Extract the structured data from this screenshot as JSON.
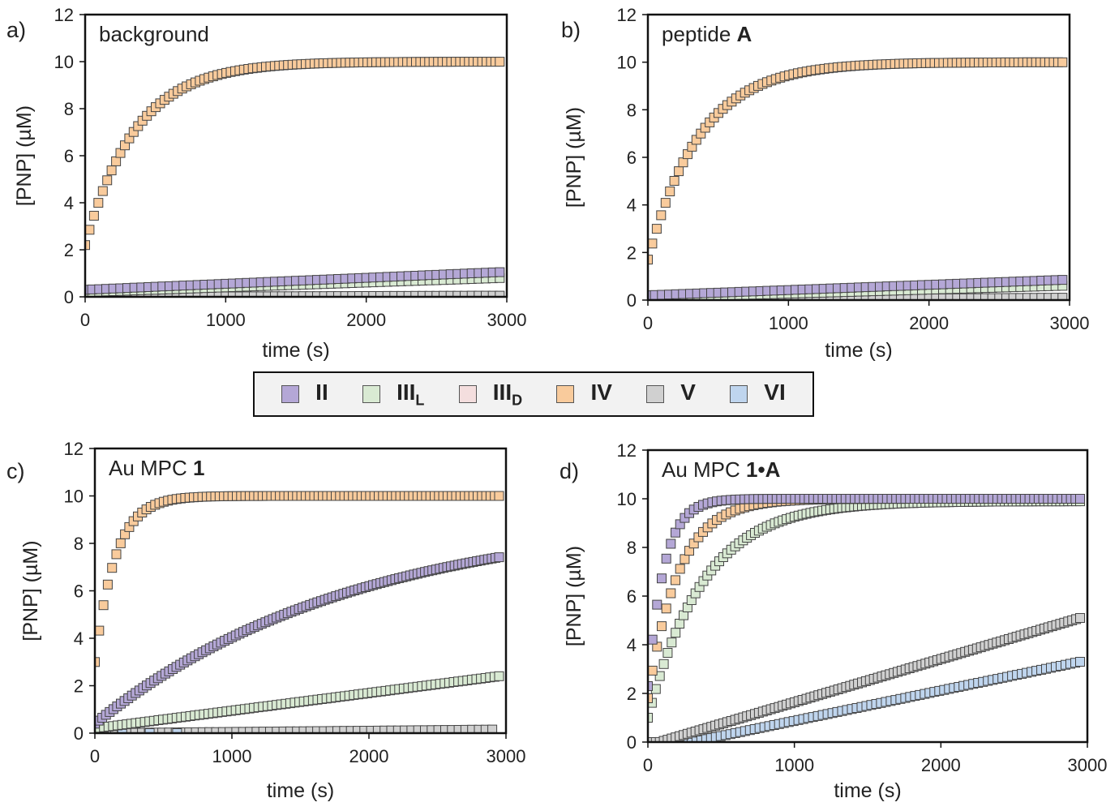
{
  "chart_data": [
    {
      "type": "scatter",
      "panel_label": "a)",
      "title": "background",
      "title_bold": "",
      "xlabel": "time (s)",
      "ylabel": "[PNP] (µM)",
      "xlim": [
        0,
        3000
      ],
      "ylim": [
        0,
        12
      ],
      "xticks": [
        "0",
        "1000",
        "2000",
        "3000"
      ],
      "yticks": [
        "0",
        "2",
        "4",
        "6",
        "8",
        "10",
        "12"
      ],
      "series": [
        {
          "name": "V",
          "model": "linear",
          "start": 0.0,
          "end": 0.05,
          "t_start": 0,
          "t_end": 2950,
          "n": 60
        },
        {
          "name": "III_L",
          "model": "linear",
          "start": 0.2,
          "end": 0.8,
          "t_start": 0,
          "t_end": 2950,
          "n": 60
        },
        {
          "name": "II",
          "model": "linear",
          "start": 0.3,
          "end": 1.05,
          "t_start": 0,
          "t_end": 2950,
          "n": 60
        },
        {
          "name": "IV",
          "model": "exp",
          "y0": 2.2,
          "plateau": 10.0,
          "tau": 360,
          "t_start": 0,
          "t_end": 2950,
          "n": 95
        }
      ]
    },
    {
      "type": "scatter",
      "panel_label": "b)",
      "title": "peptide ",
      "title_bold": "A",
      "xlabel": "time (s)",
      "ylabel": "[PNP] (µM)",
      "xlim": [
        0,
        3000
      ],
      "ylim": [
        0,
        12
      ],
      "xticks": [
        "0",
        "1000",
        "2000",
        "3000"
      ],
      "yticks": [
        "0",
        "2",
        "4",
        "6",
        "8",
        "10",
        "12"
      ],
      "series": [
        {
          "name": "V",
          "model": "linear",
          "start": 0.0,
          "end": 0.1,
          "t_start": 0,
          "t_end": 2950,
          "n": 60
        },
        {
          "name": "III_L",
          "model": "linear",
          "start": 0.1,
          "end": 0.6,
          "t_start": 0,
          "t_end": 2950,
          "n": 60
        },
        {
          "name": "II",
          "model": "linear",
          "start": 0.2,
          "end": 0.85,
          "t_start": 0,
          "t_end": 2950,
          "n": 60
        },
        {
          "name": "IV",
          "model": "exp",
          "y0": 1.7,
          "plateau": 10.0,
          "tau": 370,
          "t_start": 0,
          "t_end": 2950,
          "n": 95
        }
      ]
    },
    {
      "type": "scatter",
      "panel_label": "c)",
      "title": "Au MPC ",
      "title_bold": "1",
      "xlabel": "time (s)",
      "ylabel": "[PNP] (µM)",
      "xlim": [
        0,
        3000
      ],
      "ylim": [
        0,
        12
      ],
      "xticks": [
        "0",
        "1000",
        "2000",
        "3000"
      ],
      "yticks": [
        "0",
        "2",
        "4",
        "6",
        "8",
        "10",
        "12"
      ],
      "series": [
        {
          "name": "V",
          "model": "linear",
          "start": 0.0,
          "end": 0.15,
          "t_start": 0,
          "t_end": 2900,
          "n": 60
        },
        {
          "name": "VI",
          "model": "linear",
          "start": 0.0,
          "end": 0.0,
          "t_start": 0,
          "t_end": 600,
          "n": 4
        },
        {
          "name": "III_L",
          "model": "linear",
          "start": 0.2,
          "end": 2.4,
          "t_start": 0,
          "t_end": 2950,
          "n": 90
        },
        {
          "name": "II",
          "model": "exp",
          "y0": 0.4,
          "plateau": 9.3,
          "tau": 1900,
          "t_start": 0,
          "t_end": 2950,
          "n": 110
        },
        {
          "name": "IV",
          "model": "exp",
          "y0": 3.0,
          "plateau": 10.0,
          "tau": 150,
          "t_start": 0,
          "t_end": 2950,
          "n": 95
        }
      ]
    },
    {
      "type": "scatter",
      "panel_label": "d)",
      "title": "Au MPC ",
      "title_bold": "1•A",
      "xlabel": "time (s)",
      "ylabel": "[PNP] (µM)",
      "xlim": [
        0,
        3000
      ],
      "ylim": [
        0,
        12
      ],
      "xticks": [
        "0",
        "1000",
        "2000",
        "3000"
      ],
      "yticks": [
        "0",
        "2",
        "4",
        "6",
        "8",
        "10",
        "12"
      ],
      "series": [
        {
          "name": "VI",
          "model": "ramp",
          "start": 0.0,
          "end": 3.3,
          "t_zero": 300,
          "t_start": 0,
          "t_end": 2950,
          "n": 90
        },
        {
          "name": "V",
          "model": "ramp",
          "start": 0.0,
          "end": 5.1,
          "t_zero": 80,
          "t_start": 0,
          "t_end": 2950,
          "n": 110
        },
        {
          "name": "III_L",
          "model": "exp",
          "y0": 1.0,
          "plateau": 9.9,
          "tau": 380,
          "t_start": 0,
          "t_end": 2950,
          "n": 110
        },
        {
          "name": "IV",
          "model": "exp",
          "y0": 1.8,
          "plateau": 10.0,
          "tau": 210,
          "t_start": 0,
          "t_end": 2950,
          "n": 95
        },
        {
          "name": "II",
          "model": "exp",
          "y0": 2.3,
          "plateau": 10.0,
          "tau": 110,
          "t_start": 0,
          "t_end": 2950,
          "n": 95
        }
      ]
    }
  ],
  "legend": {
    "items": [
      {
        "key": "II",
        "label": "II",
        "sub": "",
        "color": "#b4a7d6"
      },
      {
        "key": "III_L",
        "label": "III",
        "sub": "L",
        "color": "#d9ead3"
      },
      {
        "key": "III_D",
        "label": "III",
        "sub": "D",
        "color": "#f4dede"
      },
      {
        "key": "IV",
        "label": "IV",
        "sub": "",
        "color": "#f9cb9c"
      },
      {
        "key": "V",
        "label": "V",
        "sub": "",
        "color": "#d0d0d0"
      },
      {
        "key": "VI",
        "label": "VI",
        "sub": "",
        "color": "#bfd5ee"
      }
    ]
  },
  "colors": {
    "II": "#b4a7d6",
    "III_L": "#d9ead3",
    "III_D": "#f4dede",
    "IV": "#f9cb9c",
    "V": "#d0d0d0",
    "VI": "#bfd5ee",
    "marker_edge": "#444444"
  }
}
